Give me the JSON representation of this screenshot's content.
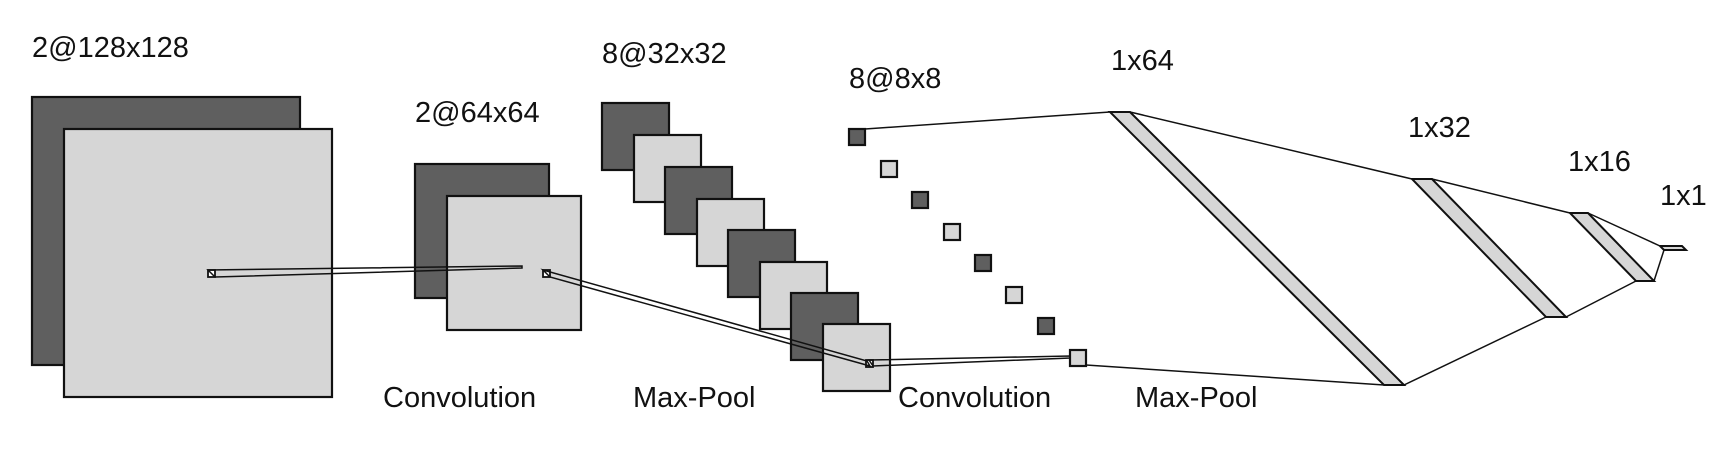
{
  "layers": {
    "input": "2@128x128",
    "conv1": "2@64x64",
    "pool1": "8@32x32",
    "conv2": "8@8x8",
    "fc1": "1x64",
    "fc2": "1x32",
    "fc3": "1x16",
    "out": "1x1"
  },
  "operations": {
    "op1": "Convolution",
    "op2": "Max-Pool",
    "op3": "Convolution",
    "op4": "Max-Pool"
  },
  "colors": {
    "dark_map": "#5f5f5f",
    "light_map": "#d6d6d6",
    "stroke": "#111111"
  }
}
